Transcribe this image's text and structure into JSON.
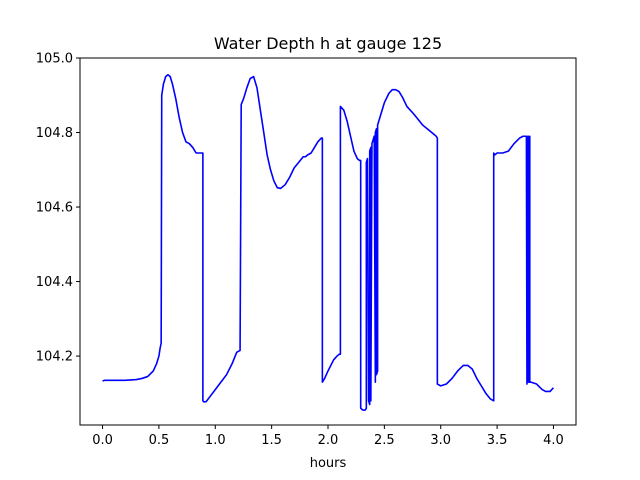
{
  "chart_data": {
    "type": "line",
    "title": "Water Depth h at gauge 125",
    "xlabel": "hours",
    "ylabel": "",
    "xlim": [
      -0.2,
      4.2
    ],
    "ylim": [
      104.015,
      105.0
    ],
    "x_ticks": [
      0.0,
      0.5,
      1.0,
      1.5,
      2.0,
      2.5,
      3.0,
      3.5,
      4.0
    ],
    "x_tick_labels": [
      "0.0",
      "0.5",
      "1.0",
      "1.5",
      "2.0",
      "2.5",
      "3.0",
      "3.5",
      "4.0"
    ],
    "y_ticks": [
      104.2,
      104.4,
      104.6,
      104.8,
      105.0
    ],
    "y_tick_labels": [
      "104.2",
      "104.4",
      "104.6",
      "104.8",
      "105.0"
    ],
    "grid": false,
    "legend": "none",
    "series": [
      {
        "color": "#0000ff",
        "x": [
          0.0,
          0.02,
          0.1,
          0.2,
          0.3,
          0.35,
          0.4,
          0.45,
          0.48,
          0.5,
          0.51,
          0.52,
          0.525,
          0.54,
          0.56,
          0.58,
          0.6,
          0.62,
          0.65,
          0.68,
          0.71,
          0.74,
          0.77,
          0.8,
          0.83,
          0.86,
          0.89,
          0.89,
          0.9,
          0.92,
          0.95,
          1.0,
          1.05,
          1.1,
          1.15,
          1.19,
          1.22,
          1.23,
          1.25,
          1.28,
          1.31,
          1.34,
          1.37,
          1.4,
          1.43,
          1.46,
          1.49,
          1.52,
          1.55,
          1.58,
          1.62,
          1.66,
          1.7,
          1.74,
          1.78,
          1.8,
          1.82,
          1.85,
          1.88,
          1.91,
          1.94,
          1.95,
          1.95,
          1.97,
          2.0,
          2.05,
          2.08,
          2.1,
          2.11,
          2.11,
          2.14,
          2.17,
          2.2,
          2.23,
          2.26,
          2.28,
          2.29,
          2.29,
          2.31,
          2.33,
          2.34,
          2.34,
          2.35,
          2.36,
          2.37,
          2.37,
          2.38,
          2.38,
          2.39,
          2.4,
          2.41,
          2.42,
          2.42,
          2.43,
          2.43,
          2.44,
          2.44,
          2.46,
          2.5,
          2.54,
          2.57,
          2.6,
          2.63,
          2.66,
          2.7,
          2.73,
          2.76,
          2.8,
          2.84,
          2.88,
          2.92,
          2.96,
          2.97,
          2.97,
          3.0,
          3.05,
          3.1,
          3.15,
          3.2,
          3.24,
          3.28,
          3.32,
          3.36,
          3.4,
          3.44,
          3.47,
          3.47,
          3.48,
          3.5,
          3.55,
          3.6,
          3.65,
          3.7,
          3.73,
          3.75,
          3.76,
          3.765,
          3.77,
          3.775,
          3.78,
          3.785,
          3.79,
          3.79,
          3.8,
          3.85,
          3.9,
          3.93,
          3.97,
          4.0
        ],
        "y": [
          104.133,
          104.135,
          104.135,
          104.135,
          104.137,
          104.14,
          104.145,
          104.16,
          104.18,
          104.2,
          104.22,
          104.235,
          104.9,
          104.93,
          104.95,
          104.955,
          104.95,
          104.93,
          104.89,
          104.84,
          104.8,
          104.775,
          104.77,
          104.76,
          104.745,
          104.745,
          104.745,
          104.08,
          104.077,
          104.078,
          104.09,
          104.11,
          104.13,
          104.15,
          104.18,
          104.21,
          104.215,
          104.875,
          104.89,
          104.92,
          104.945,
          104.95,
          104.92,
          104.86,
          104.8,
          104.74,
          104.7,
          104.67,
          104.652,
          104.65,
          104.66,
          104.68,
          104.705,
          104.72,
          104.735,
          104.735,
          104.74,
          104.745,
          104.76,
          104.775,
          104.785,
          104.785,
          104.13,
          104.14,
          104.16,
          104.19,
          104.2,
          104.205,
          104.205,
          104.87,
          104.86,
          104.83,
          104.79,
          104.75,
          104.73,
          104.725,
          104.725,
          104.06,
          104.055,
          104.055,
          104.06,
          104.72,
          104.73,
          104.08,
          104.07,
          104.75,
          104.76,
          104.08,
          104.77,
          104.78,
          104.79,
          104.13,
          104.8,
          104.81,
          104.15,
          104.16,
          104.82,
          104.84,
          104.88,
          104.905,
          104.915,
          104.915,
          104.91,
          104.895,
          104.87,
          104.86,
          104.85,
          104.835,
          104.82,
          104.81,
          104.8,
          104.79,
          104.785,
          104.125,
          104.12,
          104.125,
          104.14,
          104.16,
          104.175,
          104.175,
          104.165,
          104.14,
          104.12,
          104.1,
          104.085,
          104.08,
          104.745,
          104.74,
          104.745,
          104.745,
          104.75,
          104.77,
          104.785,
          104.79,
          104.79,
          104.79,
          104.125,
          104.79,
          104.13,
          104.79,
          104.13,
          104.79,
          104.13,
          104.13,
          104.125,
          104.11,
          104.105,
          104.105,
          104.115
        ]
      }
    ]
  }
}
